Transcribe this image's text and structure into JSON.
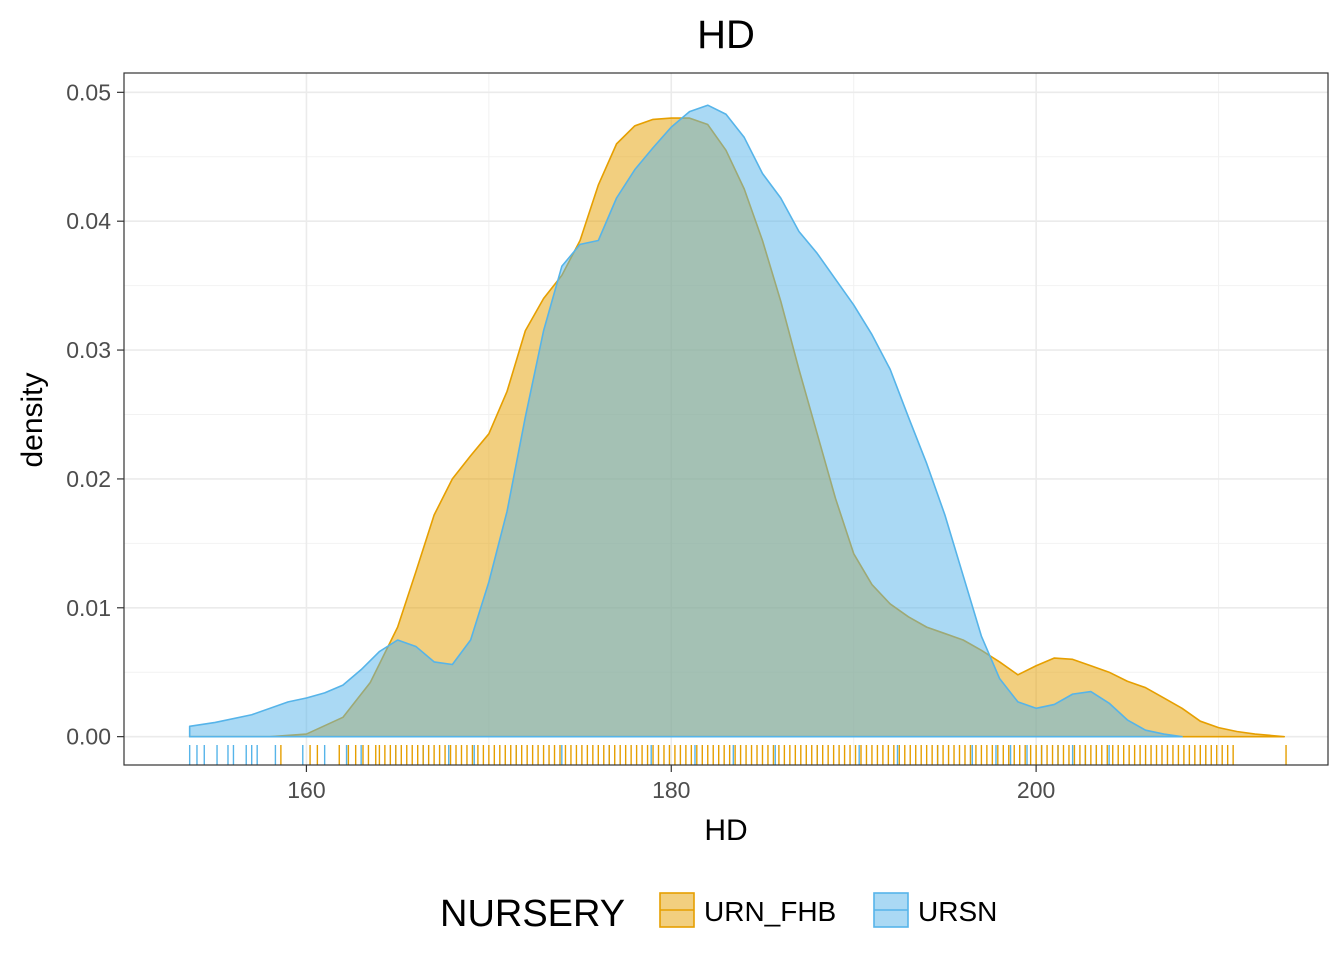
{
  "chart_data": {
    "type": "area",
    "subtype": "density",
    "title": "HD",
    "xlabel": "HD",
    "ylabel": "density",
    "xlim": [
      150,
      216
    ],
    "ylim": [
      -0.0022,
      0.0515
    ],
    "x_ticks": [
      160,
      180,
      200
    ],
    "x_tick_labels": [
      "160",
      "180",
      "200"
    ],
    "y_ticks": [
      0,
      0.01,
      0.02,
      0.03,
      0.04,
      0.05
    ],
    "y_tick_labels": [
      "0.00",
      "0.01",
      "0.02",
      "0.03",
      "0.04",
      "0.05"
    ],
    "grid": true,
    "legend": {
      "title": "NURSERY",
      "position": "bottom"
    },
    "series": [
      {
        "name": "URN_FHB",
        "fill": "#E69F00",
        "fill_opacity": 0.5,
        "stroke": "#E69F00",
        "points": [
          [
            153.6,
            0.0
          ],
          [
            158,
            0.0
          ],
          [
            160,
            0.0002
          ],
          [
            162,
            0.0015
          ],
          [
            163.5,
            0.0042
          ],
          [
            165,
            0.0085
          ],
          [
            166,
            0.0128
          ],
          [
            167,
            0.0172
          ],
          [
            168,
            0.02
          ],
          [
            169,
            0.0218
          ],
          [
            170,
            0.0235
          ],
          [
            171,
            0.0268
          ],
          [
            172,
            0.0315
          ],
          [
            173,
            0.034
          ],
          [
            174,
            0.0358
          ],
          [
            175,
            0.0385
          ],
          [
            176,
            0.0428
          ],
          [
            177,
            0.046
          ],
          [
            178,
            0.0474
          ],
          [
            179,
            0.0479
          ],
          [
            180,
            0.048
          ],
          [
            181,
            0.048
          ],
          [
            182,
            0.0475
          ],
          [
            183,
            0.0455
          ],
          [
            184,
            0.0425
          ],
          [
            185,
            0.0385
          ],
          [
            186,
            0.0338
          ],
          [
            187,
            0.0285
          ],
          [
            188,
            0.0235
          ],
          [
            189,
            0.0185
          ],
          [
            190,
            0.0142
          ],
          [
            191,
            0.0118
          ],
          [
            192,
            0.0103
          ],
          [
            193,
            0.0093
          ],
          [
            194,
            0.0085
          ],
          [
            195,
            0.008
          ],
          [
            196,
            0.0075
          ],
          [
            197,
            0.0067
          ],
          [
            198,
            0.0058
          ],
          [
            199,
            0.0048
          ],
          [
            200,
            0.0055
          ],
          [
            201,
            0.0061
          ],
          [
            202,
            0.006
          ],
          [
            203,
            0.0055
          ],
          [
            204,
            0.005
          ],
          [
            205,
            0.0043
          ],
          [
            206,
            0.0038
          ],
          [
            207,
            0.003
          ],
          [
            208,
            0.0022
          ],
          [
            209,
            0.0012
          ],
          [
            210,
            0.0007
          ],
          [
            211,
            0.0004
          ],
          [
            212,
            0.0002
          ],
          [
            213.6,
            0.0
          ]
        ]
      },
      {
        "name": "URSN",
        "fill": "#56B4E9",
        "fill_opacity": 0.5,
        "stroke": "#56B4E9",
        "points": [
          [
            153.6,
            0.0008
          ],
          [
            155,
            0.0011
          ],
          [
            157,
            0.0017
          ],
          [
            159,
            0.0027
          ],
          [
            160,
            0.003
          ],
          [
            161,
            0.0034
          ],
          [
            162,
            0.004
          ],
          [
            163,
            0.0052
          ],
          [
            164,
            0.0066
          ],
          [
            165,
            0.0075
          ],
          [
            166,
            0.007
          ],
          [
            167,
            0.0058
          ],
          [
            168,
            0.0056
          ],
          [
            169,
            0.0075
          ],
          [
            170,
            0.012
          ],
          [
            171,
            0.0175
          ],
          [
            172,
            0.0248
          ],
          [
            173,
            0.0315
          ],
          [
            174,
            0.0365
          ],
          [
            175,
            0.0382
          ],
          [
            176,
            0.0385
          ],
          [
            177,
            0.0418
          ],
          [
            178,
            0.044
          ],
          [
            179,
            0.0457
          ],
          [
            180,
            0.0473
          ],
          [
            181,
            0.0485
          ],
          [
            182,
            0.049
          ],
          [
            183,
            0.0483
          ],
          [
            184,
            0.0465
          ],
          [
            185,
            0.0437
          ],
          [
            186,
            0.0418
          ],
          [
            187,
            0.0392
          ],
          [
            188,
            0.0375
          ],
          [
            189,
            0.0355
          ],
          [
            190,
            0.0335
          ],
          [
            191,
            0.0312
          ],
          [
            192,
            0.0285
          ],
          [
            193,
            0.0248
          ],
          [
            194,
            0.0212
          ],
          [
            195,
            0.0172
          ],
          [
            196,
            0.0125
          ],
          [
            197,
            0.0078
          ],
          [
            198,
            0.0045
          ],
          [
            199,
            0.0027
          ],
          [
            200,
            0.0022
          ],
          [
            201,
            0.0025
          ],
          [
            202,
            0.0033
          ],
          [
            203,
            0.0035
          ],
          [
            204,
            0.0026
          ],
          [
            205,
            0.0013
          ],
          [
            206,
            0.0005
          ],
          [
            207,
            0.0002
          ],
          [
            208,
            0.0
          ]
        ]
      }
    ],
    "rug": [
      {
        "name": "URSN",
        "color": "#56B4E9",
        "values": [
          153.6,
          154.0,
          154.4,
          155.1,
          155.7,
          156.0,
          156.7,
          157.0,
          157.3,
          158.3,
          159.8,
          161.0,
          162.2,
          163.0,
          164.9,
          166.4,
          167.8,
          169.2,
          171.5,
          174.0,
          176.6,
          178.9,
          181.3,
          183.4,
          185.7,
          188.0,
          190.3,
          192.4,
          194.6,
          196.5,
          197.8,
          198.6,
          199.5,
          200.3,
          201.2,
          202.0,
          202.7,
          203.3,
          204.0
        ]
      },
      {
        "name": "URN_FHB",
        "color": "#E69F00",
        "values": [
          158.6,
          160.2,
          160.6,
          161.8,
          162.3,
          162.7,
          163.1,
          163.4,
          163.8,
          164.0,
          164.3,
          164.6,
          164.9,
          165.2,
          165.5,
          165.8,
          166.1,
          166.4,
          166.7,
          167.0,
          167.3,
          167.6,
          167.9,
          168.2,
          168.5,
          168.8,
          169.1,
          169.4,
          169.7,
          170.0,
          170.3,
          170.6,
          170.9,
          171.2,
          171.5,
          171.8,
          172.1,
          172.4,
          172.7,
          173.0,
          173.3,
          173.6,
          173.9,
          174.2,
          174.5,
          174.8,
          175.1,
          175.4,
          175.7,
          176.0,
          176.3,
          176.6,
          176.9,
          177.2,
          177.5,
          177.8,
          178.1,
          178.4,
          178.7,
          179.0,
          179.3,
          179.6,
          179.9,
          180.2,
          180.5,
          180.8,
          181.1,
          181.4,
          181.7,
          182.0,
          182.3,
          182.6,
          182.9,
          183.2,
          183.5,
          183.8,
          184.1,
          184.4,
          184.7,
          185.0,
          185.3,
          185.6,
          185.9,
          186.2,
          186.5,
          186.8,
          187.1,
          187.4,
          187.7,
          188.0,
          188.3,
          188.6,
          188.9,
          189.2,
          189.5,
          189.8,
          190.1,
          190.4,
          190.7,
          191.0,
          191.3,
          191.6,
          191.9,
          192.2,
          192.5,
          192.8,
          193.1,
          193.4,
          193.7,
          194.0,
          194.3,
          194.6,
          194.9,
          195.2,
          195.5,
          195.8,
          196.1,
          196.4,
          196.7,
          197.0,
          197.3,
          197.6,
          197.9,
          198.2,
          198.5,
          198.8,
          199.1,
          199.4,
          199.7,
          200.0,
          200.3,
          200.6,
          200.9,
          201.2,
          201.5,
          201.8,
          202.1,
          202.4,
          202.7,
          203.0,
          203.3,
          203.6,
          203.9,
          204.2,
          204.5,
          204.8,
          205.1,
          205.4,
          205.7,
          206.0,
          206.3,
          206.6,
          206.9,
          207.2,
          207.5,
          207.8,
          208.1,
          208.4,
          208.7,
          209.0,
          209.3,
          209.6,
          209.9,
          210.2,
          210.5,
          210.8,
          213.7
        ]
      }
    ]
  }
}
